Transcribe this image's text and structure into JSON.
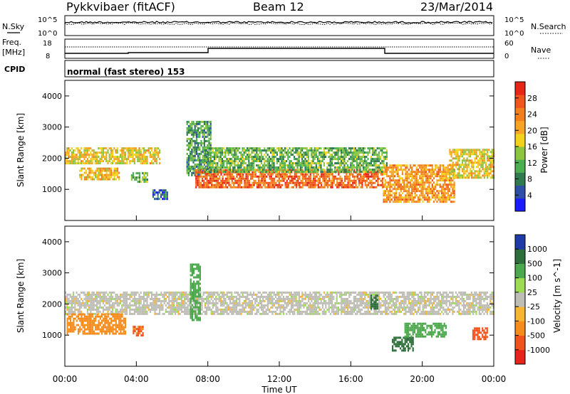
{
  "header": {
    "station": "Pykkvibaer (fitACF)",
    "beam": "Beam 12",
    "date": "23/Mar/2014"
  },
  "strips": {
    "nsky": {
      "label": "N.Sky",
      "ticks": [
        "10^5",
        "10^0"
      ],
      "right_label": "N.Search",
      "right_ticks": [
        "10^5",
        "10^0"
      ]
    },
    "freq": {
      "label_line1": "Freq.",
      "label_line2": "[MHz]",
      "ticks": [
        "18",
        "8"
      ],
      "right_label": "Nave",
      "right_ticks": [
        "60",
        "0"
      ]
    },
    "cpid": {
      "label": "CPID",
      "text": "normal (fast stereo) 153"
    }
  },
  "x_axis": {
    "label": "Time UT",
    "ticks": [
      "00:00",
      "04:00",
      "08:00",
      "12:00",
      "16:00",
      "20:00",
      "00:00"
    ]
  },
  "power_panel": {
    "ylabel": "Slant Range [km]",
    "yticks": [
      "4000",
      "3000",
      "2000",
      "1000"
    ],
    "colorbar_label": "Power [dB]",
    "colorbar_ticks": [
      "28",
      "24",
      "20",
      "16",
      "12",
      "8",
      "4"
    ],
    "colors": [
      "#1a1aff",
      "#2e4fa8",
      "#2f7a4f",
      "#4caf50",
      "#8cc63f",
      "#f2d21a",
      "#f7a326",
      "#f27f1d",
      "#f0561b",
      "#e82617"
    ]
  },
  "velocity_panel": {
    "ylabel": "Slant Range [km]",
    "yticks": [
      "4000",
      "3000",
      "2000",
      "1000"
    ],
    "colorbar_label": "Velocity [m s^-1]",
    "colorbar_ticks": [
      "1000",
      "500",
      "100",
      "25",
      "-25",
      "-100",
      "-500",
      "-1000"
    ],
    "colors": [
      "#1f3ba8",
      "#2e6e3b",
      "#4ca84c",
      "#9cdc52",
      "#bebeb6",
      "#f7b631",
      "#f58c1b",
      "#f0541c",
      "#e8231a"
    ]
  },
  "chart_data": [
    {
      "type": "heatmap",
      "name": "power",
      "x_range_hours": [
        0,
        24
      ],
      "y_range_km": [
        0,
        4500
      ],
      "bands": [
        {
          "t": [
            0,
            5.3
          ],
          "range_km": [
            1850,
            2350
          ],
          "power_db": 18
        },
        {
          "t": [
            0.8,
            3
          ],
          "range_km": [
            1300,
            1700
          ],
          "power_db": 20
        },
        {
          "t": [
            3.7,
            4.6
          ],
          "range_km": [
            1250,
            1550
          ],
          "power_db": 12
        },
        {
          "t": [
            4.9,
            5.7
          ],
          "range_km": [
            700,
            1000
          ],
          "power_db": 6
        },
        {
          "t": [
            6.8,
            8.2
          ],
          "range_km": [
            1450,
            3200
          ],
          "power_db": 10
        },
        {
          "t": [
            7.3,
            17.8
          ],
          "range_km": [
            1100,
            1650
          ],
          "power_db": 26
        },
        {
          "t": [
            7.8,
            18
          ],
          "range_km": [
            1550,
            2350
          ],
          "power_db": 12
        },
        {
          "t": [
            17.8,
            21.8
          ],
          "range_km": [
            600,
            1800
          ],
          "power_db": 22
        },
        {
          "t": [
            21.5,
            24
          ],
          "range_km": [
            1350,
            2300
          ],
          "power_db": 18
        }
      ]
    },
    {
      "type": "heatmap",
      "name": "velocity",
      "x_range_hours": [
        0,
        24
      ],
      "y_range_km": [
        0,
        4500
      ],
      "bands": [
        {
          "t": [
            0,
            24
          ],
          "range_km": [
            1700,
            2400
          ],
          "velocity": 0
        },
        {
          "t": [
            0.1,
            3.4
          ],
          "range_km": [
            1050,
            1700
          ],
          "velocity": -300
        },
        {
          "t": [
            3.8,
            4.4
          ],
          "range_km": [
            1000,
            1300
          ],
          "velocity": -500
        },
        {
          "t": [
            7.0,
            7.6
          ],
          "range_km": [
            1500,
            3300
          ],
          "velocity": 200
        },
        {
          "t": [
            17.1,
            17.5
          ],
          "range_km": [
            1850,
            2300
          ],
          "velocity": 800
        },
        {
          "t": [
            18.3,
            19.5
          ],
          "range_km": [
            500,
            950
          ],
          "velocity": 600
        },
        {
          "t": [
            19.0,
            21.3
          ],
          "range_km": [
            950,
            1400
          ],
          "velocity": 150
        },
        {
          "t": [
            22.8,
            23.6
          ],
          "range_km": [
            850,
            1250
          ],
          "velocity": -600
        }
      ]
    }
  ]
}
